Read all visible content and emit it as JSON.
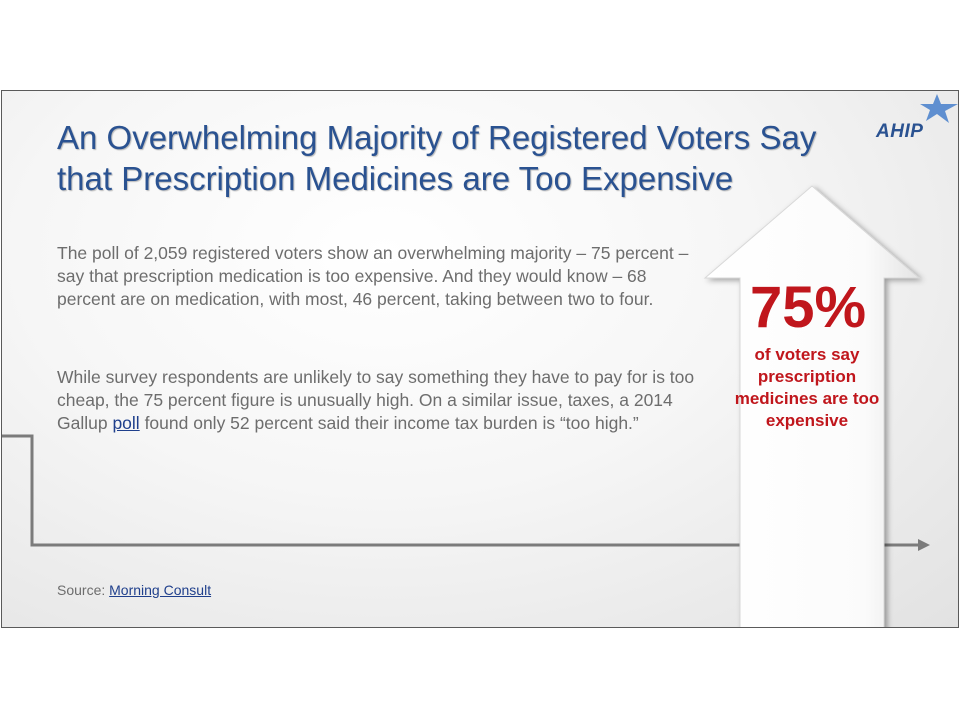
{
  "title": "An Overwhelming Majority of Registered Voters Say that Prescription Medicines are Too Expensive",
  "paragraph1": "The poll of 2,059 registered voters show an overwhelming majority – 75 percent – say that prescription medication is too expensive. And they would know – 68 percent are on medication, with most, 46 percent, taking between two to four.",
  "paragraph2": {
    "before_link": "While survey respondents are unlikely to say something they have to pay for is too cheap, the 75 percent figure is unusually high. On a similar issue, taxes, a 2014 Gallup ",
    "link": "poll",
    "after_link": " found only 52 percent said their income tax burden is “too high.”"
  },
  "source": {
    "label": "Source: ",
    "link": "Morning Consult"
  },
  "logo": {
    "text": "AHIP",
    "star_icon": "star-icon",
    "color": "#2a5291"
  },
  "callout": {
    "value": "75%",
    "caption": "of voters say prescription medicines are too expensive",
    "color": "#c0161c"
  }
}
